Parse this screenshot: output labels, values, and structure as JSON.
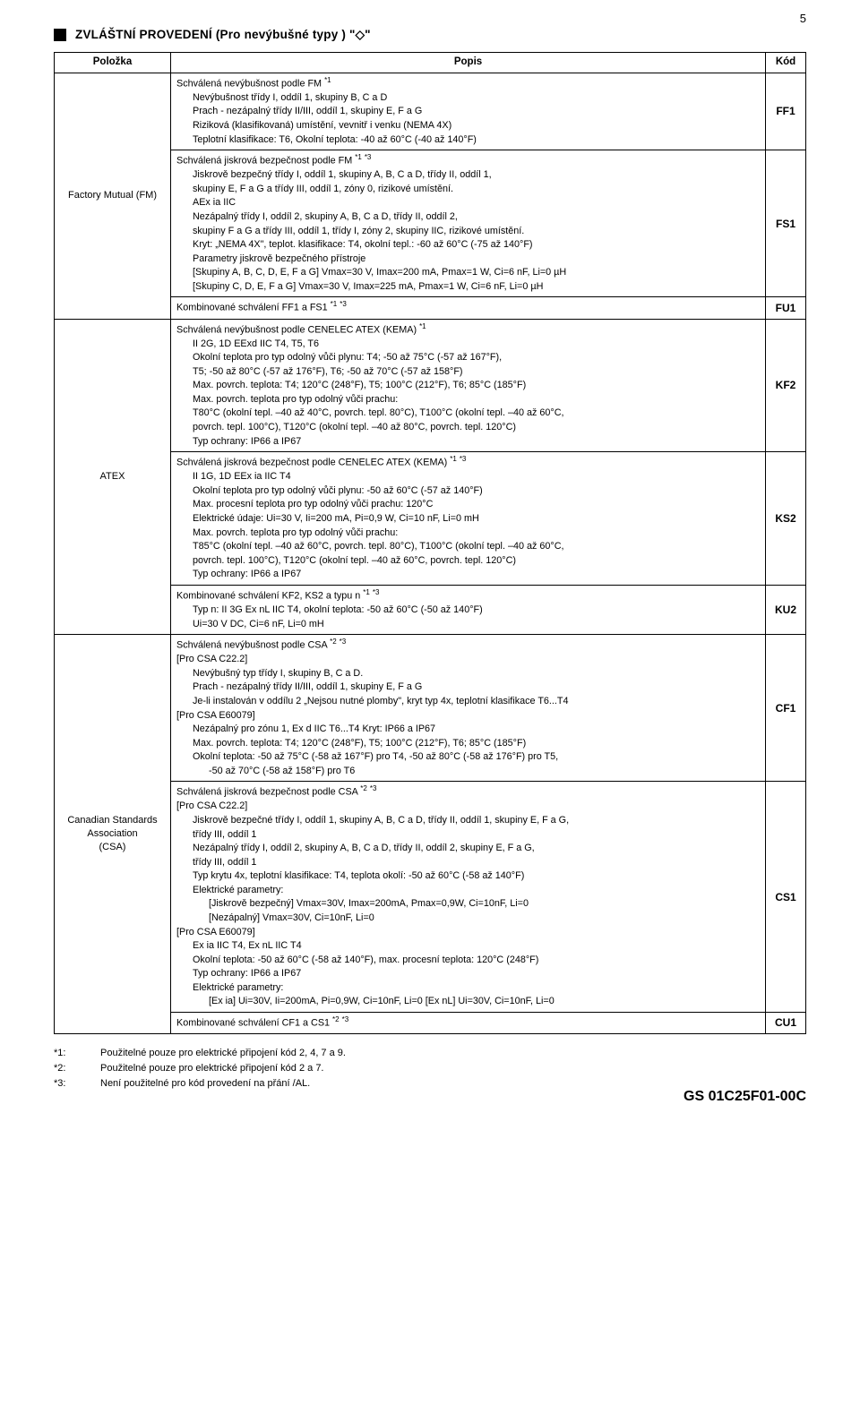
{
  "page_number": "5",
  "heading": "ZVLÁŠTNÍ PROVEDENÍ (Pro nevýbušné typy ) \"◇\"",
  "columns": {
    "c1": "Položka",
    "c2": "Popis",
    "c3": "Kód"
  },
  "rows": [
    {
      "name": "Factory Mutual (FM)",
      "cells": [
        {
          "code": "FF1",
          "lines": [
            {
              "t": "Schválená nevýbušnost podle FM *1"
            },
            {
              "t": "Nevýbušnost třídy I, oddíl 1, skupiny B, C a D",
              "i": 1
            },
            {
              "t": "Prach - nezápalný třídy II/III, oddíl 1, skupiny E, F a G",
              "i": 1
            },
            {
              "t": "Riziková (klasifikovaná) umístění, vevnitř i venku (NEMA 4X)",
              "i": 1
            },
            {
              "t": "Teplotní klasifikace: T6, Okolní teplota: -40 až 60°C (-40 až 140°F)",
              "i": 1
            }
          ]
        },
        {
          "code": "FS1",
          "lines": [
            {
              "t": "Schválená jiskrová bezpečnost podle FM *1 *3"
            },
            {
              "t": "Jiskrově bezpečný třídy I, oddíl 1, skupiny A, B, C a D, třídy II, oddíl 1,",
              "i": 1
            },
            {
              "t": "skupiny E, F a G a třídy III, oddíl 1, zóny 0, rizikové umístění.",
              "i": 1
            },
            {
              "t": "AEx ia IIC",
              "i": 1
            },
            {
              "t": "Nezápalný třídy I, oddíl 2, skupiny A, B, C a D, třídy II, oddíl 2,",
              "i": 1
            },
            {
              "t": "skupiny F a G a třídy III, oddíl 1, třídy I, zóny 2, skupiny IIC, rizikové umístění.",
              "i": 1
            },
            {
              "t": "Kryt: „NEMA 4X\", teplot. klasifikace: T4, okolní tepl.: -60 až 60°C (-75 až 140°F)",
              "i": 1
            },
            {
              "t": "Parametry jiskrově bezpečného přístroje",
              "i": 1
            },
            {
              "t": "[Skupiny A, B, C, D, E, F a G] Vmax=30 V, Imax=200 mA, Pmax=1 W, Ci=6 nF, Li=0 µH",
              "i": 1
            },
            {
              "t": "[Skupiny C, D, E, F a G] Vmax=30 V, Imax=225 mA, Pmax=1 W, Ci=6 nF, Li=0 µH",
              "i": 1
            }
          ]
        },
        {
          "code": "FU1",
          "lines": [
            {
              "t": "Kombinované schválení FF1 a FS1 *1 *3"
            }
          ]
        }
      ]
    },
    {
      "name": "ATEX",
      "cells": [
        {
          "code": "KF2",
          "lines": [
            {
              "t": "Schválená nevýbušnost podle CENELEC ATEX (KEMA) *1"
            },
            {
              "t": "II 2G, 1D EExd IIC T4, T5, T6",
              "i": 1
            },
            {
              "t": "Okolní teplota pro typ odolný vůči plynu: T4; -50 až 75°C (-57 až 167°F),",
              "i": 1
            },
            {
              "t": "T5; -50 až 80°C (-57 až 176°F), T6; -50 až 70°C (-57 až 158°F)",
              "i": 1
            },
            {
              "t": "Max. povrch. teplota: T4; 120°C (248°F), T5; 100°C (212°F), T6; 85°C (185°F)",
              "i": 1
            },
            {
              "t": "Max. povrch. teplota pro typ odolný vůči prachu:",
              "i": 1
            },
            {
              "t": "T80°C (okolní tepl. –40 až 40°C, povrch. tepl. 80°C), T100°C (okolní tepl. –40 až 60°C,",
              "i": 1
            },
            {
              "t": "povrch. tepl. 100°C), T120°C (okolní tepl. –40 až 80°C, povrch. tepl. 120°C)",
              "i": 1
            },
            {
              "t": "Typ ochrany: IP66 a IP67",
              "i": 1
            }
          ]
        },
        {
          "code": "KS2",
          "lines": [
            {
              "t": "Schválená jiskrová bezpečnost podle CENELEC ATEX (KEMA) *1 *3"
            },
            {
              "t": "II 1G, 1D EEx ia IIC T4",
              "i": 1
            },
            {
              "t": "Okolní teplota pro typ odolný vůči plynu: -50 až 60°C (-57 až 140°F)",
              "i": 1
            },
            {
              "t": "Max. procesní teplota pro typ odolný vůči prachu: 120°C",
              "i": 1
            },
            {
              "t": "Elektrické údaje: Ui=30 V, Ii=200 mA, Pi=0,9 W, Ci=10 nF, Li=0 mH",
              "i": 1
            },
            {
              "t": "Max. povrch. teplota pro typ odolný vůči prachu:",
              "i": 1
            },
            {
              "t": "T85°C (okolní tepl. –40 až 60°C, povrch. tepl. 80°C), T100°C (okolní tepl. –40 až 60°C,",
              "i": 1
            },
            {
              "t": "povrch. tepl. 100°C), T120°C (okolní tepl. –40 až 60°C, povrch. tepl. 120°C)",
              "i": 1
            },
            {
              "t": "Typ ochrany: IP66 a IP67",
              "i": 1
            }
          ]
        },
        {
          "code": "KU2",
          "lines": [
            {
              "t": "Kombinované schválení KF2, KS2 a typu n *1 *3"
            },
            {
              "t": "Typ n: II 3G Ex nL IIC T4, okolní teplota: -50 až 60°C (-50 až 140°F)",
              "i": 1
            },
            {
              "t": "Ui=30 V DC, Ci=6 nF, Li=0 mH",
              "i": 1
            }
          ]
        }
      ]
    },
    {
      "name": "Canadian Standards Association\n(CSA)",
      "cells": [
        {
          "code": "CF1",
          "lines": [
            {
              "t": "Schválená nevýbušnost podle CSA *2 *3"
            },
            {
              "t": "[Pro CSA C22.2]"
            },
            {
              "t": "Nevýbušný typ třídy I, skupiny B, C a D.",
              "i": 1
            },
            {
              "t": "Prach - nezápalný třídy II/III, oddíl 1, skupiny E, F a G",
              "i": 1
            },
            {
              "t": "Je-li instalován v oddílu 2 „Nejsou nutné plomby\", kryt  typ 4x, teplotní klasifikace T6...T4",
              "i": 1
            },
            {
              "t": "[Pro CSA E60079]"
            },
            {
              "t": "Nezápalný pro zónu 1, Ex d IIC T6...T4 Kryt: IP66 a IP67",
              "i": 1
            },
            {
              "t": " "
            },
            {
              "t": "Max. povrch. teplota: T4; 120°C (248°F), T5; 100°C (212°F), T6; 85°C (185°F)",
              "i": 1
            },
            {
              "t": "Okolní teplota: -50 až 75°C (-58 až 167°F) pro T4, -50 až 80°C (-58 až 176°F) pro T5,",
              "i": 1
            },
            {
              "t": "-50 až 70°C (-58 až 158°F) pro T6",
              "i": 2
            }
          ]
        },
        {
          "code": "CS1",
          "lines": [
            {
              "t": "Schválená jiskrová bezpečnost podle CSA *2 *3"
            },
            {
              "t": "[Pro CSA C22.2]"
            },
            {
              "t": "Jiskrově bezpečné třídy I, oddíl 1, skupiny A, B, C a D, třídy II, oddíl 1, skupiny E, F a G,",
              "i": 1
            },
            {
              "t": "třídy III, oddíl 1",
              "i": 1
            },
            {
              "t": "Nezápalný třídy I, oddíl 2, skupiny A, B, C a D, třídy II, oddíl 2, skupiny E, F a G,",
              "i": 1
            },
            {
              "t": "třídy III, oddíl 1",
              "i": 1
            },
            {
              "t": "Typ krytu 4x, teplotní klasifikace: T4, teplota okolí: -50 až 60°C (-58 až 140°F)",
              "i": 1
            },
            {
              "t": "Elektrické parametry:",
              "i": 1
            },
            {
              "t": "[Jiskrově bezpečný] Vmax=30V, Imax=200mA, Pmax=0,9W, Ci=10nF, Li=0",
              "i": 2
            },
            {
              "t": "[Nezápalný] Vmax=30V, Ci=10nF, Li=0",
              "i": 2
            },
            {
              "t": "[Pro CSA E60079]"
            },
            {
              "t": "Ex ia IIC T4, Ex nL IIC T4",
              "i": 1
            },
            {
              "t": "Okolní teplota: -50 až 60°C (-58 až 140°F), max. procesní teplota: 120°C (248°F)",
              "i": 1
            },
            {
              "t": "Typ ochrany: IP66 a IP67",
              "i": 1
            },
            {
              "t": "Elektrické parametry:",
              "i": 1
            },
            {
              "t": "[Ex ia] Ui=30V, Ii=200mA, Pi=0,9W, Ci=10nF, Li=0 [Ex nL] Ui=30V, Ci=10nF, Li=0",
              "i": 2
            }
          ]
        },
        {
          "code": "CU1",
          "lines": [
            {
              "t": "Kombinované schválení CF1 a CS1 *2 *3"
            }
          ]
        }
      ]
    }
  ],
  "footnotes": [
    {
      "k": "*1:",
      "v": "Použitelné pouze pro elektrické připojení kód 2, 4, 7 a 9."
    },
    {
      "k": "*2:",
      "v": "Použitelné pouze pro elektrické připojení kód 2 a 7."
    },
    {
      "k": "*3:",
      "v": "Není použitelné pro kód provedení na přání /AL."
    }
  ],
  "doc_code": "GS 01C25F01-00C"
}
